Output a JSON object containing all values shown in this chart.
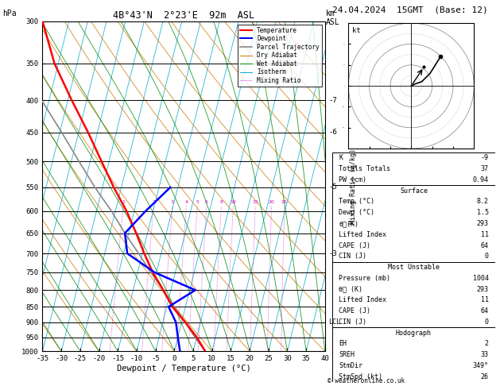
{
  "title_left": "4B°43'N  2°23'E  92m  ASL",
  "title_right": "24.04.2024  15GMT  (Base: 12)",
  "xlabel": "Dewpoint / Temperature (°C)",
  "ylabel_left": "hPa",
  "pres_levels": [
    300,
    350,
    400,
    450,
    500,
    550,
    600,
    650,
    700,
    750,
    800,
    850,
    900,
    950,
    1000
  ],
  "xlim": [
    -35,
    40
  ],
  "p_min": 300,
  "p_max": 1000,
  "temp_profile": {
    "pressure": [
      1000,
      950,
      900,
      850,
      800,
      750,
      700,
      650,
      600,
      550,
      500,
      450,
      400,
      350,
      300
    ],
    "temperature": [
      8.2,
      5.0,
      1.0,
      -3.5,
      -7.0,
      -11.0,
      -14.5,
      -18.0,
      -22.0,
      -27.0,
      -32.0,
      -37.5,
      -44.0,
      -51.0,
      -57.0
    ]
  },
  "dewp_profile": {
    "pressure": [
      1000,
      950,
      900,
      850,
      800,
      750,
      700,
      650,
      600,
      550
    ],
    "dewpoint": [
      1.5,
      0.0,
      -1.5,
      -4.5,
      1.5,
      -10.5,
      -19.0,
      -21.0,
      -17.0,
      -12.0
    ]
  },
  "parcel_profile": {
    "pressure": [
      1000,
      950,
      900,
      850,
      800,
      750,
      700,
      650,
      600,
      550,
      500,
      450,
      400,
      350,
      300
    ],
    "temperature": [
      8.2,
      4.5,
      1.0,
      -3.0,
      -7.0,
      -11.5,
      -16.0,
      -21.0,
      -26.0,
      -32.0,
      -38.0,
      -44.5,
      -52.0,
      -59.0,
      -66.0
    ]
  },
  "mixing_ratio_lines": [
    1,
    2,
    3,
    4,
    5,
    6,
    8,
    10,
    15,
    20,
    25
  ],
  "km_ticks": {
    "pressure": [
      700,
      550,
      450,
      400
    ],
    "labels": [
      "3",
      "5",
      "6",
      "7"
    ]
  },
  "lcl_pressure": 900,
  "skew_factor": 22.0,
  "legend_items": [
    {
      "label": "Temperature",
      "color": "#ff0000",
      "lw": 1.5,
      "ls": "-"
    },
    {
      "label": "Dewpoint",
      "color": "#0000ff",
      "lw": 1.5,
      "ls": "-"
    },
    {
      "label": "Parcel Trajectory",
      "color": "#888888",
      "lw": 1.2,
      "ls": "-"
    },
    {
      "label": "Dry Adiabat",
      "color": "#cc7700",
      "lw": 0.7,
      "ls": "-"
    },
    {
      "label": "Wet Adiabat",
      "color": "#008800",
      "lw": 0.7,
      "ls": "-"
    },
    {
      "label": "Isotherm",
      "color": "#00aacc",
      "lw": 0.7,
      "ls": "-"
    },
    {
      "label": "Mixing Ratio",
      "color": "#cc00cc",
      "lw": 0.7,
      "ls": ":"
    }
  ],
  "info_K": "-9",
  "info_TT": "37",
  "info_PW": "0.94",
  "info_surf_temp": "8.2",
  "info_surf_dewp": "1.5",
  "info_surf_theta": "293",
  "info_surf_li": "11",
  "info_surf_cape": "64",
  "info_surf_cin": "0",
  "info_mu_pres": "1004",
  "info_mu_theta": "293",
  "info_mu_li": "11",
  "info_mu_cape": "64",
  "info_mu_cin": "0",
  "info_eh": "2",
  "info_sreh": "33",
  "info_stmdir": "349°",
  "info_stmspd": "26",
  "copyright": "© weatheronline.co.uk"
}
